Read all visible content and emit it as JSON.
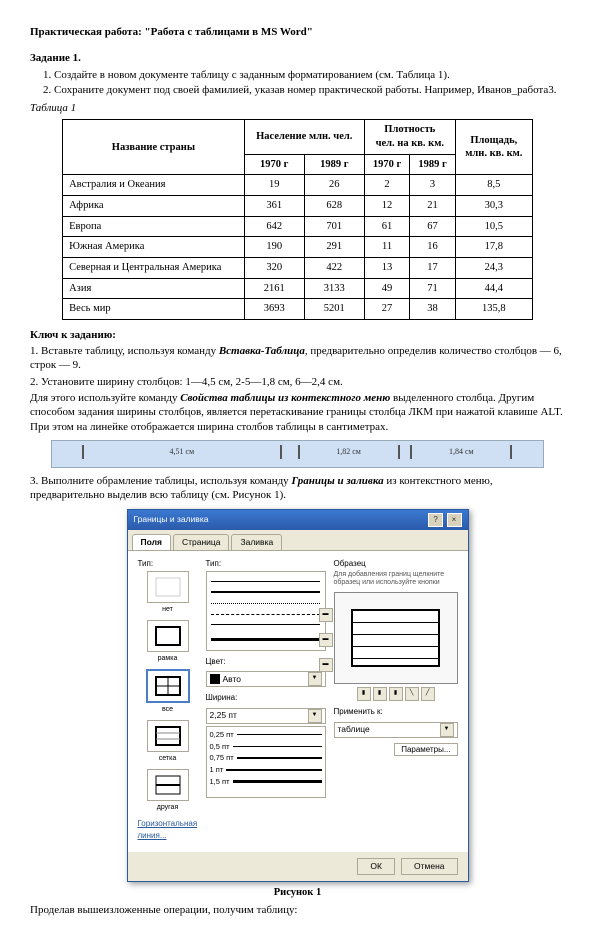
{
  "title": "Практическая работа:  \"Работа с таблицами в   MS Word\"",
  "task1": {
    "heading": "Задание 1.",
    "step1": "Создайте в новом документе таблицу с заданным форматированием (см. Таблица 1).",
    "step2": "Сохраните документ под своей фамилией, указав номер практической работы. Например, Иванов_работа3.",
    "table_label": "Таблица 1"
  },
  "table": {
    "h_country": "Название страны",
    "h_pop": "Население млн. чел.",
    "h_density": "Плотность\nчел. на кв. км.",
    "h_area": "Площадь,\nмлн. кв. км.",
    "y1": "1970 г",
    "y2": "1989 г",
    "rows": [
      {
        "n": "Австралия и Океания",
        "p1": "19",
        "p2": "26",
        "d1": "2",
        "d2": "3",
        "a": "8,5"
      },
      {
        "n": "Африка",
        "p1": "361",
        "p2": "628",
        "d1": "12",
        "d2": "21",
        "a": "30,3"
      },
      {
        "n": "Европа",
        "p1": "642",
        "p2": "701",
        "d1": "61",
        "d2": "67",
        "a": "10,5"
      },
      {
        "n": "Южная Америка",
        "p1": "190",
        "p2": "291",
        "d1": "11",
        "d2": "16",
        "a": "17,8"
      },
      {
        "n": "Северная и Центральная Америка",
        "p1": "320",
        "p2": "422",
        "d1": "13",
        "d2": "17",
        "a": "24,3"
      },
      {
        "n": "Азия",
        "p1": "2161",
        "p2": "3133",
        "d1": "49",
        "d2": "71",
        "a": "44,4"
      },
      {
        "n": "Весь мир",
        "p1": "3693",
        "p2": "5201",
        "d1": "27",
        "d2": "38",
        "a": "135,8"
      }
    ]
  },
  "key": {
    "heading": "Ключ к заданию:",
    "p1a": "1. Вставьте таблицу, используя команду ",
    "p1b": "Вставка-Таблица",
    "p1c": ", предварительно определив количество столбцов — 6, строк — 9.",
    "p2": "2. Установите ширину столбцов: 1—4,5 см, 2-5—1,8 см, 6—2,4 см.",
    "p3a": "Для этого используйте команду ",
    "p3b": "Свойства таблицы из контекстного меню",
    "p3c": " выделенного столбца. Другим способом задания ширины столбцов, является перетаскивание границы столбца ЛКМ при нажатой клавише ALT. При этом на линейке отображается ширина столбов таблицы в сантиметрах."
  },
  "ruler": {
    "m1": "4,51 см",
    "m2": "1,82 см",
    "m3": "1,84 см"
  },
  "p4a": "3. Выполните обрамление таблицы, используя команду ",
  "p4b": "Границы и заливка",
  "p4c": " из контекстного меню, предварительно выделив всю таблицу (см. Рисунок 1).",
  "dialog": {
    "title": "Границы и заливка",
    "tab1": "Поля",
    "tab2": "Страница",
    "tab3": "Заливка",
    "type": "Тип:",
    "t_none": "нет",
    "t_box": "рамка",
    "t_all": "все",
    "t_grid": "сетка",
    "t_other": "другая",
    "style": "Тип:",
    "color": "Цвет:",
    "auto": "Авто",
    "width": "Ширина:",
    "width_val": "2,25 пт",
    "w_items": [
      "0,25 пт",
      "0,5 пт",
      "0,75 пт",
      "1 пт",
      "1,5 пт"
    ],
    "preview": "Образец",
    "preview_hint": "Для добавления границ щелкните образец или используйте кнопки",
    "apply": "Применить к:",
    "apply_val": "таблице",
    "hline": "Горизонтальная линия...",
    "params": "Параметры...",
    "ok": "ОК",
    "cancel": "Отмена"
  },
  "fig": "Рисунок 1",
  "final": "Проделав вышеизложенные операции, получим таблицу:"
}
